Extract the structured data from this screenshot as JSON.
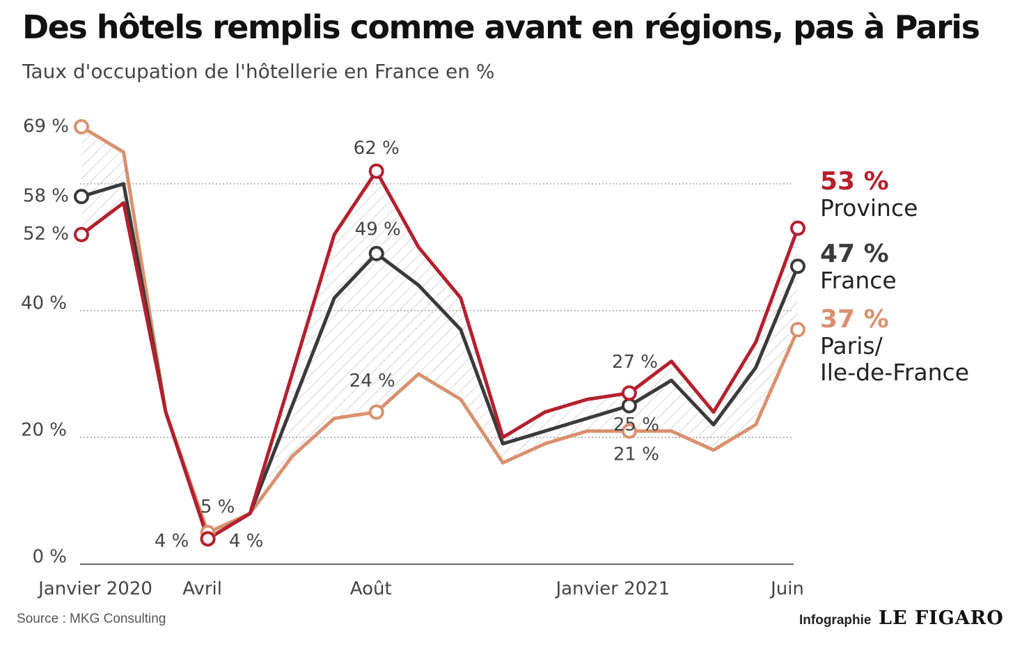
{
  "chart_data": {
    "type": "line",
    "title": "Des hôtels remplis comme avant en régions, pas à Paris",
    "subtitle": "Taux d'occupation de l'hôtellerie en France en %",
    "categories": [
      "Janvier 2020",
      null,
      null,
      "Avril",
      null,
      null,
      null,
      "Août",
      null,
      null,
      null,
      null,
      "Janvier 2021",
      null,
      null,
      null,
      null,
      "Juin"
    ],
    "ylim": [
      0,
      69
    ],
    "yticks": [
      {
        "value": 0,
        "label": "0 %"
      },
      {
        "value": 20,
        "label": "20 %"
      },
      {
        "value": 40,
        "label": "40 %"
      },
      {
        "value": 60,
        "label": null
      }
    ],
    "grid": true,
    "series": [
      {
        "name": "Province",
        "color": "#b5202e",
        "values": [
          52,
          57,
          24,
          4,
          8,
          30,
          52,
          62,
          50,
          42,
          20,
          24,
          26,
          27,
          32,
          24,
          35,
          53
        ],
        "value_labels": [
          "52 %",
          null,
          null,
          "4 %",
          null,
          null,
          null,
          "62 %",
          null,
          null,
          null,
          null,
          null,
          "27 %",
          null,
          null,
          null,
          "53 %"
        ]
      },
      {
        "name": "France",
        "color": "#3a3a3a",
        "values": [
          58,
          60,
          24,
          4,
          8,
          25,
          42,
          49,
          44,
          37,
          19,
          21,
          23,
          25,
          29,
          22,
          31,
          47
        ],
        "value_labels": [
          "58 %",
          null,
          null,
          "4 %",
          null,
          null,
          null,
          "49 %",
          null,
          null,
          null,
          null,
          null,
          "25 %",
          null,
          null,
          null,
          "47 %"
        ]
      },
      {
        "name": "Paris/\nIle-de-France",
        "color": "#d9916f",
        "values": [
          69,
          65,
          24,
          5,
          8,
          17,
          23,
          24,
          30,
          26,
          16,
          19,
          21,
          21,
          21,
          18,
          22,
          37
        ],
        "value_labels": [
          "69 %",
          null,
          null,
          "5 %",
          null,
          null,
          null,
          "24 %",
          null,
          null,
          null,
          null,
          null,
          "21 %",
          null,
          null,
          null,
          "37 %"
        ]
      }
    ],
    "source": "Source : MKG Consulting",
    "credit": "Infographie",
    "brand": "LE FIGARO"
  }
}
